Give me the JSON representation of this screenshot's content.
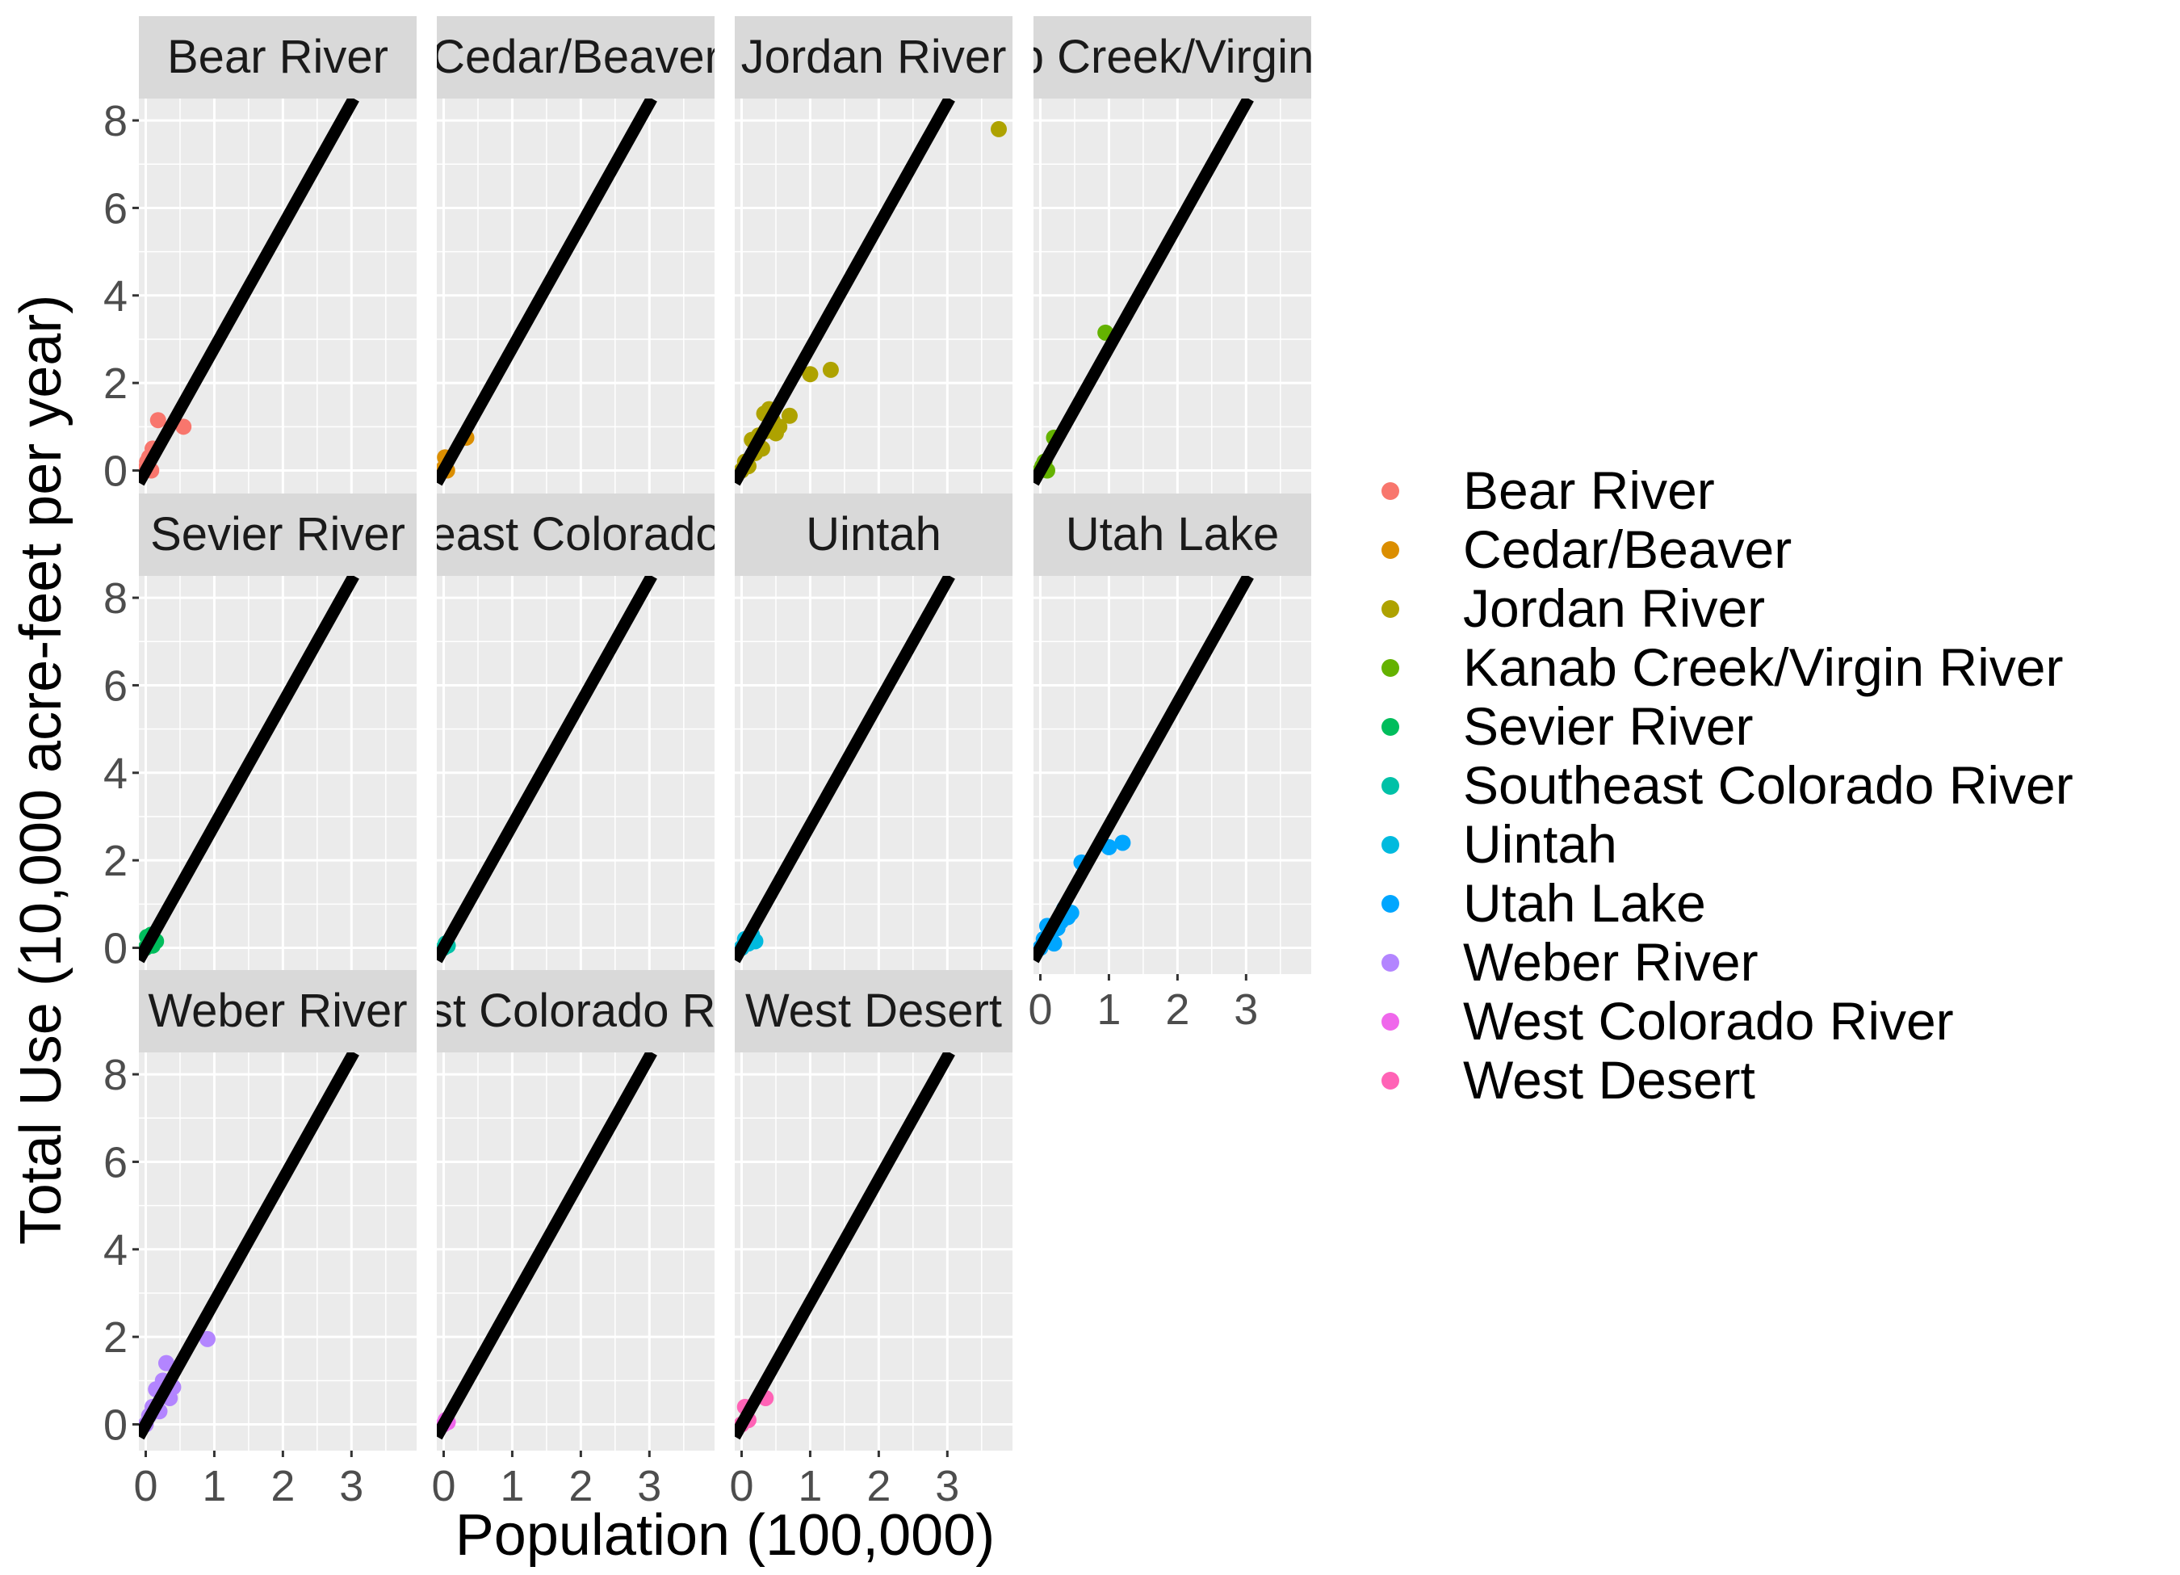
{
  "chart_data": {
    "type": "scatter",
    "xlabel": "Population (100,000)",
    "ylabel": "Total Use (10,000 acre-feet per year)",
    "xlim": [
      -0.1,
      3.95
    ],
    "ylim": [
      -0.6,
      8.5
    ],
    "x_ticks": [
      0,
      1,
      2,
      3
    ],
    "y_ticks": [
      0,
      2,
      4,
      6,
      8
    ],
    "grid": true,
    "legend_position": "right",
    "reference_line": {
      "slope": 2.8,
      "intercept": 0,
      "color": "#000000"
    },
    "panel_titles": [
      "Bear River",
      "Cedar/Beaver",
      "Jordan River",
      "Kanab Creek/Virgin River",
      "Sevier River",
      "Southeast Colorado River",
      "Uintah",
      "Utah Lake",
      "Weber River",
      "West Colorado River",
      "West Desert"
    ],
    "series": [
      {
        "name": "Bear River",
        "color": "#F8766D",
        "x": [
          0.0,
          0.02,
          0.05,
          0.08,
          0.1,
          0.18,
          0.55
        ],
        "y": [
          0.05,
          0.2,
          0.3,
          0.0,
          0.5,
          1.15,
          1.0
        ]
      },
      {
        "name": "Cedar/Beaver",
        "color": "#DB8E00",
        "x": [
          0.0,
          0.02,
          0.05,
          0.33
        ],
        "y": [
          0.05,
          0.3,
          0.0,
          0.75
        ]
      },
      {
        "name": "Jordan River",
        "color": "#AEA200",
        "x": [
          0.0,
          0.05,
          0.1,
          0.15,
          0.2,
          0.25,
          0.3,
          0.33,
          0.35,
          0.4,
          0.45,
          0.5,
          0.55,
          0.7,
          1.0,
          1.3,
          3.75
        ],
        "y": [
          0.0,
          0.2,
          0.1,
          0.7,
          0.4,
          0.8,
          0.5,
          1.3,
          0.9,
          1.4,
          1.15,
          0.85,
          1.0,
          1.25,
          2.2,
          2.3,
          7.8
        ]
      },
      {
        "name": "Kanab Creek/Virgin River",
        "color": "#64B200",
        "x": [
          0.0,
          0.03,
          0.06,
          0.1,
          0.2,
          0.95
        ],
        "y": [
          0.0,
          0.1,
          0.2,
          0.0,
          0.75,
          3.15
        ]
      },
      {
        "name": "Sevier River",
        "color": "#00BD5C",
        "x": [
          0.0,
          0.02,
          0.05,
          0.08,
          0.1,
          0.15
        ],
        "y": [
          0.0,
          0.25,
          0.1,
          0.3,
          0.05,
          0.15
        ]
      },
      {
        "name": "Southeast Colorado River",
        "color": "#00C1A7",
        "x": [
          0.0,
          0.03,
          0.06
        ],
        "y": [
          0.0,
          0.1,
          0.05
        ]
      },
      {
        "name": "Uintah",
        "color": "#00BADE",
        "x": [
          0.0,
          0.05,
          0.1,
          0.15,
          0.2
        ],
        "y": [
          0.0,
          0.2,
          0.1,
          0.3,
          0.15
        ]
      },
      {
        "name": "Utah Lake",
        "color": "#00A6FF",
        "x": [
          0.0,
          0.05,
          0.1,
          0.15,
          0.2,
          0.25,
          0.3,
          0.35,
          0.4,
          0.45,
          0.6,
          1.0,
          1.2
        ],
        "y": [
          0.0,
          0.2,
          0.5,
          0.3,
          0.1,
          0.45,
          0.6,
          0.9,
          0.7,
          0.8,
          1.95,
          2.3,
          2.4
        ]
      },
      {
        "name": "Weber River",
        "color": "#B385FF",
        "x": [
          0.0,
          0.05,
          0.1,
          0.15,
          0.2,
          0.25,
          0.3,
          0.35,
          0.4,
          0.9
        ],
        "y": [
          0.0,
          0.2,
          0.4,
          0.8,
          0.3,
          1.0,
          1.4,
          0.6,
          0.85,
          1.95
        ]
      },
      {
        "name": "West Colorado River",
        "color": "#EF67EB",
        "x": [
          0.0,
          0.03,
          0.06
        ],
        "y": [
          0.0,
          0.1,
          0.05
        ]
      },
      {
        "name": "West Desert",
        "color": "#FF63B6",
        "x": [
          0.0,
          0.05,
          0.1,
          0.35
        ],
        "y": [
          0.0,
          0.4,
          0.1,
          0.6
        ]
      }
    ]
  }
}
